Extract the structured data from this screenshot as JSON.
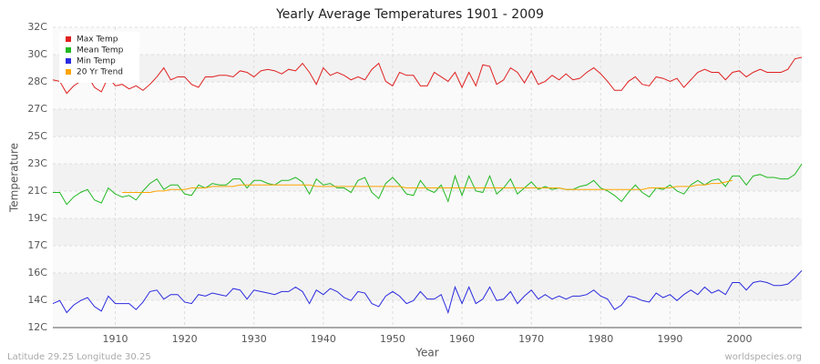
{
  "chart_data": {
    "type": "line",
    "title": "Yearly Average Temperatures 1901 - 2009",
    "xlabel": "Year",
    "ylabel": "Temperature",
    "footer_left": "Latitude 29.25 Longitude 30.25",
    "footer_right": "worldspecies.org",
    "x": [
      1901,
      1902,
      1903,
      1904,
      1905,
      1906,
      1907,
      1908,
      1909,
      1910,
      1911,
      1912,
      1913,
      1914,
      1915,
      1916,
      1917,
      1918,
      1919,
      1920,
      1921,
      1922,
      1923,
      1924,
      1925,
      1926,
      1927,
      1928,
      1929,
      1930,
      1931,
      1932,
      1933,
      1934,
      1935,
      1936,
      1937,
      1938,
      1939,
      1940,
      1941,
      1942,
      1943,
      1944,
      1945,
      1946,
      1947,
      1948,
      1949,
      1950,
      1951,
      1952,
      1953,
      1954,
      1955,
      1956,
      1957,
      1958,
      1959,
      1960,
      1961,
      1962,
      1963,
      1964,
      1965,
      1966,
      1967,
      1968,
      1969,
      1970,
      1971,
      1972,
      1973,
      1974,
      1975,
      1976,
      1977,
      1978,
      1979,
      1980,
      1981,
      1982,
      1983,
      1984,
      1985,
      1986,
      1987,
      1988,
      1989,
      1990,
      1991,
      1992,
      1993,
      1994,
      1995,
      1996,
      1997,
      1998,
      1999,
      2000,
      2001,
      2002,
      2003,
      2004,
      2005,
      2006,
      2007,
      2008,
      2009
    ],
    "series": [
      {
        "name": "Max Temp",
        "color": "#e02020",
        "values": [
          28.5,
          28.4,
          27.6,
          28.1,
          28.4,
          28.8,
          28.0,
          27.7,
          28.7,
          28.1,
          28.2,
          27.9,
          28.1,
          27.8,
          28.2,
          28.7,
          29.3,
          28.5,
          28.7,
          28.7,
          28.2,
          28.0,
          28.7,
          28.7,
          28.8,
          28.8,
          28.7,
          29.1,
          29.0,
          28.7,
          29.1,
          29.2,
          29.1,
          28.9,
          29.2,
          29.1,
          29.6,
          29.0,
          28.2,
          29.3,
          28.8,
          29.0,
          28.8,
          28.5,
          28.7,
          28.5,
          29.2,
          29.6,
          28.4,
          28.1,
          29.0,
          28.8,
          28.8,
          28.1,
          28.1,
          29.0,
          28.7,
          28.4,
          29.0,
          28.0,
          29.0,
          28.1,
          29.5,
          29.4,
          28.2,
          28.5,
          29.3,
          29.0,
          28.3,
          29.1,
          28.2,
          28.4,
          28.8,
          28.5,
          28.9,
          28.5,
          28.6,
          29.0,
          29.3,
          28.9,
          28.4,
          27.8,
          27.8,
          28.4,
          28.7,
          28.2,
          28.1,
          28.7,
          28.6,
          28.4,
          28.6,
          28.0,
          28.5,
          29.0,
          29.2,
          29.0,
          29.0,
          28.5,
          29.0,
          29.1,
          28.7,
          29.0,
          29.2,
          29.0,
          29.0,
          29.0,
          29.2,
          29.9,
          30.0
        ]
      },
      {
        "name": "Mean Temp",
        "color": "#22b822",
        "values": [
          21.0,
          21.0,
          20.2,
          20.7,
          21.0,
          21.2,
          20.5,
          20.3,
          21.3,
          20.9,
          20.7,
          20.8,
          20.5,
          21.1,
          21.6,
          21.9,
          21.2,
          21.5,
          21.5,
          20.9,
          20.8,
          21.5,
          21.3,
          21.6,
          21.5,
          21.5,
          21.9,
          21.9,
          21.3,
          21.8,
          21.8,
          21.6,
          21.5,
          21.8,
          21.8,
          22.0,
          21.7,
          20.9,
          21.9,
          21.5,
          21.6,
          21.3,
          21.3,
          21.0,
          21.8,
          22.0,
          21.0,
          20.6,
          21.6,
          22.0,
          21.5,
          20.9,
          20.8,
          21.8,
          21.2,
          21.0,
          21.5,
          20.4,
          22.1,
          20.8,
          22.1,
          21.1,
          21.0,
          22.1,
          20.9,
          21.3,
          21.9,
          20.9,
          21.3,
          21.7,
          21.2,
          21.4,
          21.2,
          21.3,
          21.2,
          21.2,
          21.4,
          21.5,
          21.8,
          21.3,
          21.1,
          20.8,
          20.4,
          21.0,
          21.5,
          21.0,
          20.7,
          21.3,
          21.2,
          21.5,
          21.1,
          20.9,
          21.5,
          21.8,
          21.5,
          21.8,
          21.9,
          21.4,
          22.1,
          22.1,
          21.5,
          22.1,
          22.2,
          22.0,
          22.0,
          21.9,
          21.9,
          22.2,
          22.9
        ]
      },
      {
        "name": "Min Temp",
        "color": "#2a2ae0",
        "values": [
          13.6,
          13.8,
          13.0,
          13.5,
          13.8,
          14.0,
          13.4,
          13.1,
          14.1,
          13.6,
          13.6,
          13.6,
          13.2,
          13.7,
          14.4,
          14.5,
          13.9,
          14.2,
          14.2,
          13.7,
          13.6,
          14.2,
          14.1,
          14.3,
          14.2,
          14.1,
          14.6,
          14.5,
          13.9,
          14.5,
          14.4,
          14.3,
          14.2,
          14.4,
          14.4,
          14.7,
          14.4,
          13.6,
          14.5,
          14.2,
          14.6,
          14.4,
          14.0,
          13.8,
          14.4,
          14.3,
          13.6,
          13.4,
          14.1,
          14.4,
          14.1,
          13.6,
          13.8,
          14.4,
          13.9,
          13.9,
          14.2,
          13.0,
          14.7,
          13.6,
          14.7,
          13.6,
          13.9,
          14.7,
          13.8,
          13.9,
          14.4,
          13.6,
          14.1,
          14.5,
          13.9,
          14.2,
          13.9,
          14.1,
          13.9,
          14.1,
          14.1,
          14.2,
          14.5,
          14.1,
          13.9,
          13.2,
          13.5,
          14.1,
          14.0,
          13.8,
          13.7,
          14.3,
          14.0,
          14.2,
          13.8,
          14.2,
          14.5,
          14.2,
          14.7,
          14.3,
          14.5,
          14.2,
          15.0,
          15.0,
          14.5,
          15.0,
          15.1,
          15.0,
          14.8,
          14.8,
          14.9,
          15.3,
          15.8
        ]
      },
      {
        "name": "20 Yr Trend",
        "color": "#ffa500",
        "values": [
          null,
          null,
          null,
          null,
          null,
          null,
          null,
          null,
          null,
          null,
          21.0,
          21.0,
          21.0,
          21.0,
          21.0,
          21.1,
          21.1,
          21.2,
          21.2,
          21.2,
          21.3,
          21.3,
          21.3,
          21.4,
          21.4,
          21.4,
          21.4,
          21.5,
          21.5,
          21.5,
          21.5,
          21.5,
          21.5,
          21.5,
          21.5,
          21.5,
          21.5,
          21.5,
          21.4,
          21.4,
          21.4,
          21.4,
          21.4,
          21.4,
          21.4,
          21.4,
          21.4,
          21.4,
          21.4,
          21.4,
          21.4,
          21.3,
          21.3,
          21.3,
          21.3,
          21.3,
          21.3,
          21.3,
          21.3,
          21.3,
          21.3,
          21.3,
          21.3,
          21.3,
          21.3,
          21.3,
          21.3,
          21.3,
          21.3,
          21.3,
          21.3,
          21.3,
          21.3,
          21.3,
          21.2,
          21.2,
          21.2,
          21.2,
          21.2,
          21.2,
          21.2,
          21.2,
          21.2,
          21.2,
          21.2,
          21.2,
          21.3,
          21.3,
          21.3,
          21.3,
          21.4,
          21.4,
          21.4,
          21.5,
          21.5,
          21.6,
          21.6,
          21.7,
          21.8,
          null,
          null,
          null,
          null,
          null,
          null,
          null,
          null,
          null,
          null
        ]
      }
    ],
    "xlim": [
      1901,
      2009
    ],
    "xticks": [
      1910,
      1920,
      1930,
      1940,
      1950,
      1960,
      1970,
      1980,
      1990,
      2000
    ],
    "ylim": [
      12,
      32
    ],
    "yticks": [
      {
        "value": 12,
        "label": "12C"
      },
      {
        "value": 13.818,
        "label": "14C"
      },
      {
        "value": 15.636,
        "label": "16C"
      },
      {
        "value": 17.455,
        "label": "17C"
      },
      {
        "value": 19.273,
        "label": "19C"
      },
      {
        "value": 21.091,
        "label": "21C"
      },
      {
        "value": 22.909,
        "label": "23C"
      },
      {
        "value": 24.727,
        "label": "25C"
      },
      {
        "value": 26.545,
        "label": "27C"
      },
      {
        "value": 28.364,
        "label": "28C"
      },
      {
        "value": 30.182,
        "label": "30C"
      },
      {
        "value": 32,
        "label": "32C"
      }
    ],
    "grid": true,
    "legend_position": "upper left"
  }
}
